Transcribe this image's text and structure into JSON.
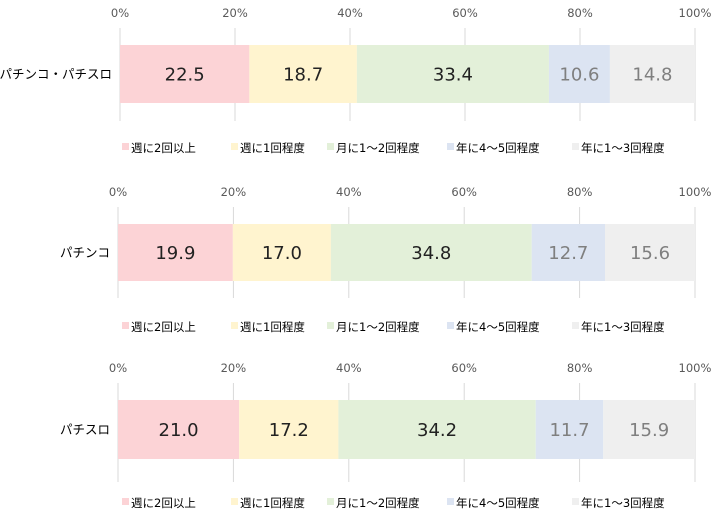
{
  "chart_data": [
    {
      "type": "bar",
      "orientation": "horizontal",
      "stacked": true,
      "percent": true,
      "categories": [
        "パチンコ・パチスロ"
      ],
      "xlim": [
        0,
        100
      ],
      "ticks": [
        "0%",
        "20%",
        "40%",
        "60%",
        "80%",
        "100%"
      ],
      "grid": true,
      "legend_position": "bottom",
      "series": [
        {
          "name": "週に2回以上",
          "values": [
            22.5
          ],
          "color": "#FCD3D6"
        },
        {
          "name": "週に1回程度",
          "values": [
            18.7
          ],
          "color": "#FFF4CF"
        },
        {
          "name": "月に1～2回程度",
          "values": [
            33.4
          ],
          "color": "#E3F0D9"
        },
        {
          "name": "年に4～5回程度",
          "values": [
            10.6
          ],
          "color": "#DCE4F2"
        },
        {
          "name": "年に1～3回程度",
          "values": [
            14.8
          ],
          "color": "#EFEFEF"
        }
      ]
    },
    {
      "type": "bar",
      "orientation": "horizontal",
      "stacked": true,
      "percent": true,
      "categories": [
        "パチンコ"
      ],
      "xlim": [
        0,
        100
      ],
      "ticks": [
        "0%",
        "20%",
        "40%",
        "60%",
        "80%",
        "100%"
      ],
      "grid": true,
      "legend_position": "bottom",
      "series": [
        {
          "name": "週に2回以上",
          "values": [
            19.9
          ],
          "color": "#FCD3D6"
        },
        {
          "name": "週に1回程度",
          "values": [
            17.0
          ],
          "color": "#FFF4CF"
        },
        {
          "name": "月に1～2回程度",
          "values": [
            34.8
          ],
          "color": "#E3F0D9"
        },
        {
          "name": "年に4～5回程度",
          "values": [
            12.7
          ],
          "color": "#DCE4F2"
        },
        {
          "name": "年に1～3回程度",
          "values": [
            15.6
          ],
          "color": "#EFEFEF"
        }
      ]
    },
    {
      "type": "bar",
      "orientation": "horizontal",
      "stacked": true,
      "percent": true,
      "categories": [
        "パチスロ"
      ],
      "xlim": [
        0,
        100
      ],
      "ticks": [
        "0%",
        "20%",
        "40%",
        "60%",
        "80%",
        "100%"
      ],
      "grid": true,
      "legend_position": "bottom",
      "series": [
        {
          "name": "週に2回以上",
          "values": [
            21.0
          ],
          "color": "#FCD3D6"
        },
        {
          "name": "週に1回程度",
          "values": [
            17.2
          ],
          "color": "#FFF4CF"
        },
        {
          "name": "月に1～2回程度",
          "values": [
            34.2
          ],
          "color": "#E3F0D9"
        },
        {
          "name": "年に4～5回程度",
          "values": [
            11.7
          ],
          "color": "#DCE4F2"
        },
        {
          "name": "年に1～3回程度",
          "values": [
            15.9
          ],
          "color": "#EFEFEF"
        }
      ]
    }
  ],
  "colors": {
    "gridline": "#D9D9D9",
    "tick_text": "#595959",
    "label_dark": "#222222",
    "label_muted": "#7F7F7F"
  }
}
